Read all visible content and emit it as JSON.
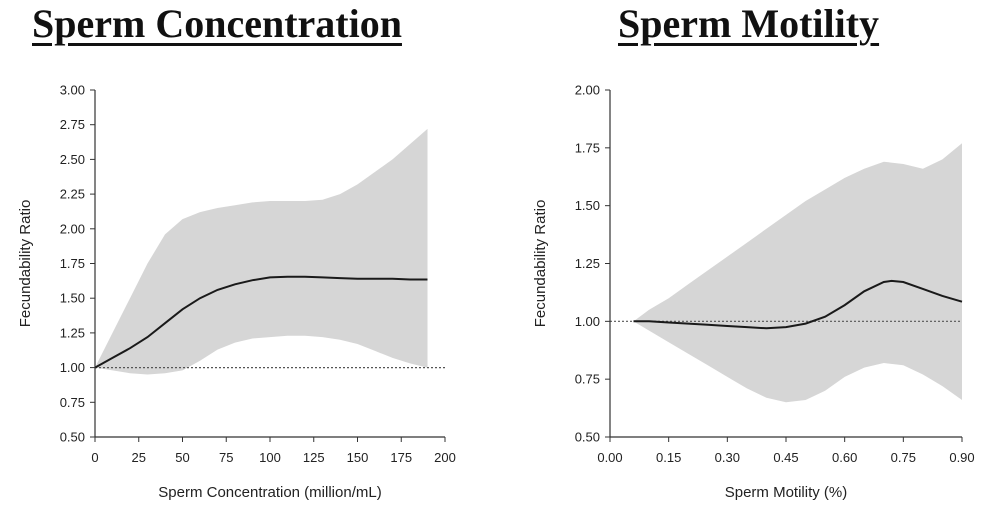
{
  "colors": {
    "band": "#d6d6d6",
    "line": "#1a1a1a",
    "axis": "#333333",
    "reference": "#555555"
  },
  "chart_data": [
    {
      "type": "line",
      "title": "Sperm Concentration",
      "xlabel": "Sperm Concentration (million/mL)",
      "ylabel": "Fecundability Ratio",
      "xlim": [
        0,
        200
      ],
      "ylim": [
        0.5,
        3.0
      ],
      "xticks": [
        0,
        25,
        50,
        75,
        100,
        125,
        150,
        175,
        200
      ],
      "xtick_labels": [
        "0",
        "25",
        "50",
        "75",
        "100",
        "125",
        "150",
        "175",
        "200"
      ],
      "yticks": [
        0.5,
        0.75,
        1.0,
        1.25,
        1.5,
        1.75,
        2.0,
        2.25,
        2.5,
        2.75,
        3.0
      ],
      "ytick_labels": [
        "0.50",
        "0.75",
        "1.00",
        "1.25",
        "1.50",
        "1.75",
        "2.00",
        "2.25",
        "2.50",
        "2.75",
        "3.00"
      ],
      "reference_line": 1.0,
      "series": [
        {
          "name": "estimate",
          "x": [
            0,
            10,
            20,
            30,
            40,
            50,
            60,
            70,
            80,
            90,
            100,
            110,
            120,
            130,
            140,
            150,
            160,
            170,
            180,
            190
          ],
          "values": [
            1.0,
            1.07,
            1.14,
            1.22,
            1.32,
            1.42,
            1.5,
            1.56,
            1.6,
            1.63,
            1.65,
            1.655,
            1.655,
            1.65,
            1.645,
            1.64,
            1.64,
            1.64,
            1.635,
            1.635
          ]
        },
        {
          "name": "upper",
          "x": [
            0,
            10,
            20,
            30,
            40,
            50,
            60,
            70,
            80,
            90,
            100,
            110,
            120,
            130,
            140,
            150,
            160,
            170,
            180,
            190
          ],
          "values": [
            1.0,
            1.25,
            1.5,
            1.75,
            1.96,
            2.07,
            2.12,
            2.15,
            2.17,
            2.19,
            2.2,
            2.2,
            2.2,
            2.21,
            2.25,
            2.32,
            2.41,
            2.5,
            2.61,
            2.72
          ]
        },
        {
          "name": "lower",
          "x": [
            0,
            10,
            20,
            30,
            40,
            50,
            60,
            70,
            80,
            90,
            100,
            110,
            120,
            130,
            140,
            150,
            160,
            170,
            180,
            190
          ],
          "values": [
            1.0,
            0.98,
            0.96,
            0.95,
            0.96,
            0.98,
            1.05,
            1.13,
            1.18,
            1.21,
            1.22,
            1.23,
            1.23,
            1.22,
            1.2,
            1.17,
            1.12,
            1.07,
            1.03,
            1.0
          ]
        }
      ]
    },
    {
      "type": "line",
      "title": "Sperm Motility",
      "xlabel": "Sperm Motility (%)",
      "ylabel": "Fecundability Ratio",
      "xlim": [
        0,
        0.9
      ],
      "ylim": [
        0.5,
        2.0
      ],
      "xticks": [
        0,
        0.15,
        0.3,
        0.45,
        0.6,
        0.75,
        0.9
      ],
      "xtick_labels": [
        "0.00",
        "0.15",
        "0.30",
        "0.45",
        "0.60",
        "0.75",
        "0.90"
      ],
      "yticks": [
        0.5,
        0.75,
        1.0,
        1.25,
        1.5,
        1.75,
        2.0
      ],
      "ytick_labels": [
        "0.50",
        "0.75",
        "1.00",
        "1.25",
        "1.50",
        "1.75",
        "2.00"
      ],
      "reference_line": 1.0,
      "series": [
        {
          "name": "estimate",
          "x": [
            0.06,
            0.1,
            0.15,
            0.2,
            0.25,
            0.3,
            0.35,
            0.4,
            0.45,
            0.5,
            0.55,
            0.6,
            0.65,
            0.7,
            0.72,
            0.75,
            0.8,
            0.85,
            0.9
          ],
          "values": [
            1.0,
            1.0,
            0.995,
            0.99,
            0.985,
            0.98,
            0.975,
            0.97,
            0.975,
            0.99,
            1.02,
            1.07,
            1.13,
            1.17,
            1.175,
            1.17,
            1.14,
            1.11,
            1.085
          ]
        },
        {
          "name": "upper",
          "x": [
            0.06,
            0.1,
            0.15,
            0.2,
            0.25,
            0.3,
            0.35,
            0.4,
            0.45,
            0.5,
            0.55,
            0.6,
            0.65,
            0.7,
            0.75,
            0.8,
            0.85,
            0.9
          ],
          "values": [
            1.0,
            1.05,
            1.1,
            1.16,
            1.22,
            1.28,
            1.34,
            1.4,
            1.46,
            1.52,
            1.57,
            1.62,
            1.66,
            1.69,
            1.68,
            1.66,
            1.7,
            1.77
          ]
        },
        {
          "name": "lower",
          "x": [
            0.06,
            0.1,
            0.15,
            0.2,
            0.25,
            0.3,
            0.35,
            0.4,
            0.45,
            0.5,
            0.55,
            0.6,
            0.65,
            0.7,
            0.75,
            0.8,
            0.85,
            0.9
          ],
          "values": [
            1.0,
            0.96,
            0.91,
            0.86,
            0.81,
            0.76,
            0.71,
            0.67,
            0.65,
            0.66,
            0.7,
            0.76,
            0.8,
            0.82,
            0.81,
            0.77,
            0.72,
            0.66
          ]
        }
      ]
    }
  ]
}
